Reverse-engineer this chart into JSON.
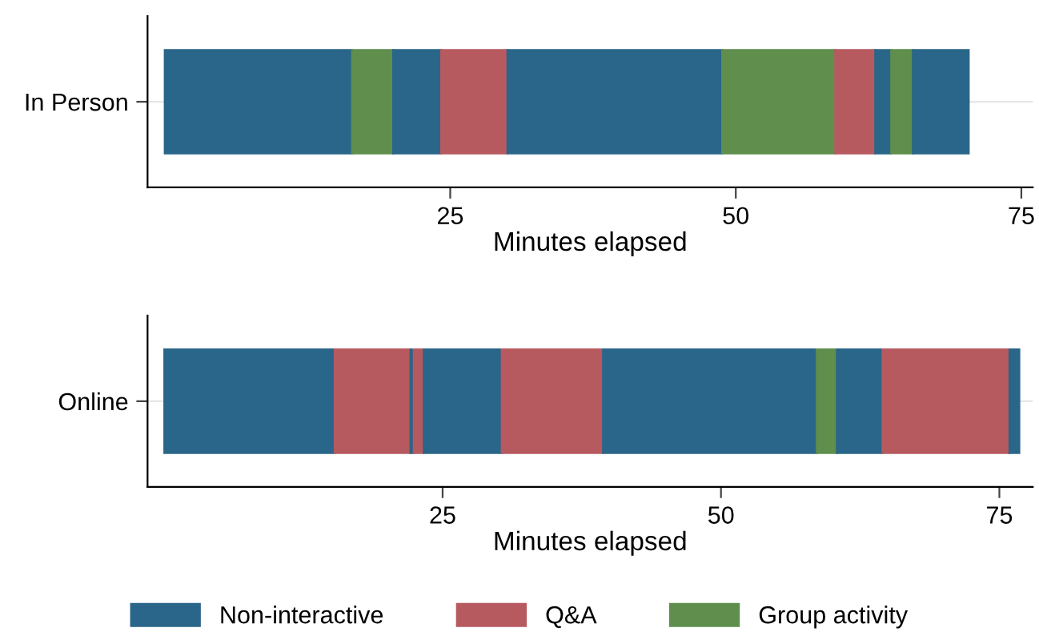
{
  "chart_data": [
    {
      "type": "bar",
      "orientation": "horizontal",
      "stacked": true,
      "categories": [
        "In Person"
      ],
      "xlabel": "Minutes elapsed",
      "xlim": [
        -1.5,
        76
      ],
      "xticks": [
        25,
        50,
        75
      ],
      "grid": "y",
      "series": [
        {
          "color": "#2a6689",
          "values": [
            16.4
          ]
        },
        {
          "color": "#5f8e4d",
          "values": [
            3.6
          ]
        },
        {
          "color": "#2a6689",
          "values": [
            4.2
          ]
        },
        {
          "color": "#b75a60",
          "values": [
            5.8
          ]
        },
        {
          "color": "#2a6689",
          "values": [
            18.8
          ]
        },
        {
          "color": "#5f8e4d",
          "values": [
            9.9
          ]
        },
        {
          "color": "#b75a60",
          "values": [
            3.5
          ]
        },
        {
          "color": "#2a6689",
          "values": [
            1.4
          ]
        },
        {
          "color": "#5f8e4d",
          "values": [
            1.9
          ]
        },
        {
          "color": "#2a6689",
          "values": [
            4.9
          ]
        }
      ]
    },
    {
      "type": "bar",
      "orientation": "horizontal",
      "stacked": true,
      "categories": [
        "Online"
      ],
      "xlabel": "Minutes elapsed",
      "xlim": [
        -1.5,
        78
      ],
      "xticks": [
        25,
        50,
        75
      ],
      "grid": "y",
      "legend": "bottom",
      "series": [
        {
          "name": "Non-interactive",
          "color": "#2a6689",
          "values": [
            15.3
          ]
        },
        {
          "name": "Q&A",
          "color": "#b75a60",
          "values": [
            6.8
          ]
        },
        {
          "color": "#2a6689",
          "values": [
            0.3
          ]
        },
        {
          "color": "#b75a60",
          "values": [
            0.9
          ]
        },
        {
          "color": "#2a6689",
          "values": [
            7.0
          ]
        },
        {
          "color": "#b75a60",
          "values": [
            9.1
          ]
        },
        {
          "color": "#2a6689",
          "values": [
            19.2
          ]
        },
        {
          "name": "Group activity",
          "color": "#5f8e4d",
          "values": [
            1.8
          ]
        },
        {
          "color": "#2a6689",
          "values": [
            4.1
          ]
        },
        {
          "color": "#b75a60",
          "values": [
            11.4
          ]
        },
        {
          "color": "#2a6689",
          "values": [
            0.9
          ]
        }
      ]
    }
  ]
}
